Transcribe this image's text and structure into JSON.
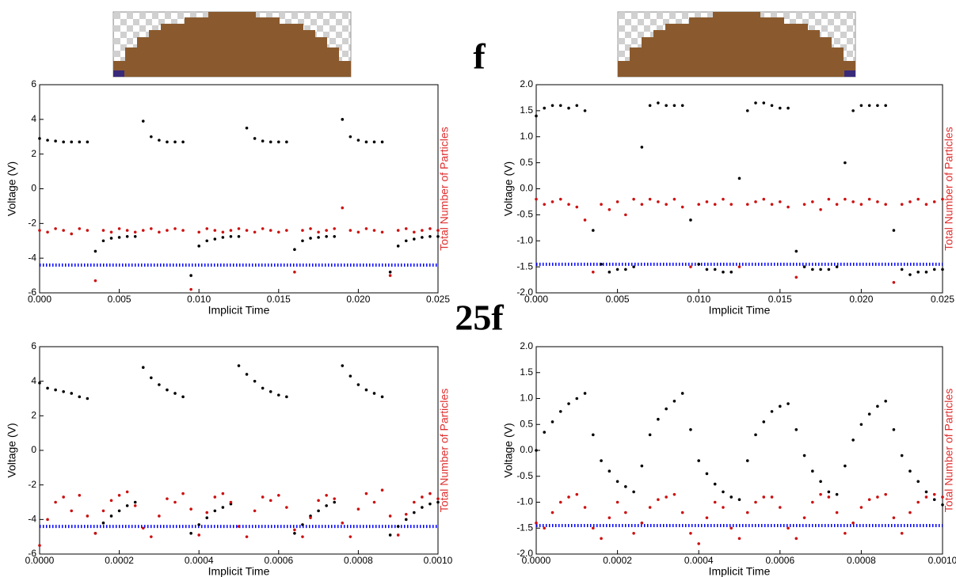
{
  "frequency_labels": [
    "f",
    "25f"
  ],
  "chart_data": [
    {
      "type": "scatter",
      "xlabel": "Implicit Time",
      "ylabel": "Voltage (V)",
      "y2label": "Total Number of Particles",
      "x": [
        0,
        0.0005,
        0.001,
        0.0015,
        0.002,
        0.0025,
        0.003,
        0.0035,
        0.004,
        0.0045,
        0.005,
        0.0055,
        0.006,
        0.0065,
        0.007,
        0.0075,
        0.008,
        0.0085,
        0.009,
        0.0095,
        0.01,
        0.0105,
        0.011,
        0.0115,
        0.012,
        0.0125,
        0.013,
        0.0135,
        0.014,
        0.0145,
        0.015,
        0.0155,
        0.016,
        0.0165,
        0.017,
        0.0175,
        0.018,
        0.0185,
        0.019,
        0.0195,
        0.02,
        0.0205,
        0.021,
        0.0215,
        0.022,
        0.0225,
        0.023,
        0.0235,
        0.024,
        0.0245,
        0.025
      ],
      "series": [
        {
          "color": "#000000",
          "values": [
            2.9,
            2.8,
            2.75,
            2.7,
            2.7,
            2.7,
            2.7,
            -3.6,
            -3.0,
            -2.85,
            -2.8,
            -2.75,
            -2.75,
            3.9,
            3.0,
            2.8,
            2.7,
            2.7,
            2.7,
            -5.0,
            -3.3,
            -3.0,
            -2.9,
            -2.8,
            -2.75,
            -2.75,
            3.5,
            2.9,
            2.75,
            2.7,
            2.7,
            2.7,
            -3.5,
            -3.0,
            -2.85,
            -2.8,
            -2.75,
            -2.75,
            4.0,
            3.0,
            2.8,
            2.7,
            2.7,
            2.7,
            -4.8,
            -3.3,
            -3.0,
            -2.9,
            -2.8,
            -2.75,
            -2.75
          ]
        },
        {
          "color": "#cc1111",
          "values": [
            -2.4,
            -2.5,
            -2.3,
            -2.4,
            -2.6,
            -2.3,
            -2.4,
            -5.3,
            -2.4,
            -2.5,
            -2.3,
            -2.4,
            -2.5,
            -2.4,
            -2.3,
            -2.5,
            -2.4,
            -2.3,
            -2.4,
            -5.8,
            -2.5,
            -2.3,
            -2.4,
            -2.5,
            -2.4,
            -2.3,
            -2.4,
            -2.5,
            -2.3,
            -2.4,
            -2.5,
            -2.4,
            -4.8,
            -2.4,
            -2.3,
            -2.5,
            -2.4,
            -2.3,
            -1.1,
            -2.4,
            -2.5,
            -2.3,
            -2.4,
            -2.5,
            -5.0,
            -2.4,
            -2.3,
            -2.5,
            -2.4,
            -2.3,
            -2.4
          ]
        }
      ],
      "hline": {
        "value": -4.4,
        "color": "#0000ff"
      },
      "xlim": [
        0,
        0.025
      ],
      "ylim": [
        -6,
        6
      ],
      "xticks": [
        {
          "value": 0,
          "label": "0.000"
        },
        {
          "value": 0.005,
          "label": "0.005"
        },
        {
          "value": 0.01,
          "label": "0.010"
        },
        {
          "value": 0.015,
          "label": "0.015"
        },
        {
          "value": 0.02,
          "label": "0.020"
        },
        {
          "value": 0.025,
          "label": "0.025"
        }
      ],
      "yticks": [
        -6,
        -4,
        -2,
        0,
        2,
        4,
        6
      ]
    },
    {
      "type": "scatter",
      "xlabel": "Implicit Time",
      "ylabel": "Voltage (V)",
      "y2label": "Total Number of Particles",
      "x": [
        0,
        0.0005,
        0.001,
        0.0015,
        0.002,
        0.0025,
        0.003,
        0.0035,
        0.004,
        0.0045,
        0.005,
        0.0055,
        0.006,
        0.0065,
        0.007,
        0.0075,
        0.008,
        0.0085,
        0.009,
        0.0095,
        0.01,
        0.0105,
        0.011,
        0.0115,
        0.012,
        0.0125,
        0.013,
        0.0135,
        0.014,
        0.0145,
        0.015,
        0.0155,
        0.016,
        0.0165,
        0.017,
        0.0175,
        0.018,
        0.0185,
        0.019,
        0.0195,
        0.02,
        0.0205,
        0.021,
        0.0215,
        0.022,
        0.0225,
        0.023,
        0.0235,
        0.024,
        0.0245,
        0.025
      ],
      "series": [
        {
          "color": "#000000",
          "values": [
            1.4,
            1.55,
            1.6,
            1.6,
            1.55,
            1.6,
            1.5,
            -0.8,
            -1.45,
            -1.6,
            -1.55,
            -1.55,
            -1.5,
            0.8,
            1.6,
            1.65,
            1.6,
            1.6,
            1.6,
            -0.6,
            -1.45,
            -1.55,
            -1.55,
            -1.6,
            -1.6,
            0.2,
            1.5,
            1.65,
            1.65,
            1.6,
            1.55,
            1.55,
            -1.2,
            -1.5,
            -1.55,
            -1.55,
            -1.55,
            -1.5,
            0.5,
            1.5,
            1.6,
            1.6,
            1.6,
            1.6,
            -0.8,
            -1.55,
            -1.65,
            -1.6,
            -1.6,
            -1.55,
            -1.55
          ]
        },
        {
          "color": "#cc1111",
          "values": [
            -0.2,
            -0.3,
            -0.25,
            -0.2,
            -0.3,
            -0.35,
            -0.6,
            -1.6,
            -0.3,
            -0.4,
            -0.25,
            -0.5,
            -0.2,
            -0.3,
            -0.2,
            -0.25,
            -0.3,
            -0.2,
            -0.35,
            -1.5,
            -0.3,
            -0.25,
            -0.3,
            -0.2,
            -0.3,
            -1.5,
            -0.3,
            -0.25,
            -0.2,
            -0.3,
            -0.25,
            -0.35,
            -1.7,
            -0.3,
            -0.25,
            -0.4,
            -0.2,
            -0.3,
            -0.2,
            -0.25,
            -0.3,
            -0.2,
            -0.25,
            -0.3,
            -1.8,
            -0.3,
            -0.25,
            -0.2,
            -0.3,
            -0.25,
            -0.2
          ]
        }
      ],
      "hline": {
        "value": -1.45,
        "color": "#0000ff"
      },
      "xlim": [
        0,
        0.025
      ],
      "ylim": [
        -2,
        2
      ],
      "xticks": [
        {
          "value": 0,
          "label": "0.000"
        },
        {
          "value": 0.005,
          "label": "0.005"
        },
        {
          "value": 0.01,
          "label": "0.010"
        },
        {
          "value": 0.015,
          "label": "0.015"
        },
        {
          "value": 0.02,
          "label": "0.020"
        },
        {
          "value": 0.025,
          "label": "0.025"
        }
      ],
      "yticks": [
        {
          "value": -2,
          "label": "-2.0"
        },
        -1.5,
        {
          "value": -1,
          "label": "-1.0"
        },
        -0.5,
        {
          "value": 0,
          "label": "0.0"
        },
        0.5,
        {
          "value": 1,
          "label": "1.0"
        },
        1.5,
        {
          "value": 2,
          "label": "2.0"
        }
      ]
    },
    {
      "type": "scatter",
      "xlabel": "Implicit Time",
      "ylabel": "Voltage (V)",
      "y2label": "Total Number of Particles",
      "x": [
        0,
        2e-05,
        4e-05,
        6e-05,
        8e-05,
        0.0001,
        0.00012,
        0.00014,
        0.00016,
        0.00018,
        0.0002,
        0.00022,
        0.00024,
        0.00026,
        0.00028,
        0.0003,
        0.00032,
        0.00034,
        0.00036,
        0.00038,
        0.0004,
        0.00042,
        0.00044,
        0.00046,
        0.00048,
        0.0005,
        0.00052,
        0.00054,
        0.00056,
        0.00058,
        0.0006,
        0.00062,
        0.00064,
        0.00066,
        0.00068,
        0.0007,
        0.00072,
        0.00074,
        0.00076,
        0.00078,
        0.0008,
        0.00082,
        0.00084,
        0.00086,
        0.00088,
        0.0009,
        0.00092,
        0.00094,
        0.00096,
        0.00098,
        0.001
      ],
      "series": [
        {
          "color": "#000000",
          "values": [
            3.9,
            3.6,
            3.5,
            3.4,
            3.3,
            3.1,
            3.0,
            -4.8,
            -4.2,
            -3.8,
            -3.5,
            -3.2,
            -3.0,
            4.8,
            4.2,
            3.8,
            3.5,
            3.3,
            3.1,
            -4.8,
            -4.3,
            -3.9,
            -3.5,
            -3.3,
            -3.1,
            4.9,
            4.4,
            4.0,
            3.6,
            3.4,
            3.2,
            3.1,
            -4.8,
            -4.3,
            -3.8,
            -3.5,
            -3.2,
            -3.0,
            4.9,
            4.3,
            3.8,
            3.5,
            3.3,
            3.1,
            -4.9,
            -4.4,
            -4.0,
            -3.6,
            -3.3,
            -3.1,
            -3.0
          ]
        },
        {
          "color": "#cc1111",
          "values": [
            -5.5,
            -4.0,
            -3.0,
            -2.7,
            -3.5,
            -2.6,
            -3.8,
            -4.8,
            -3.5,
            -2.9,
            -2.6,
            -2.4,
            -3.2,
            -4.5,
            -5.0,
            -3.8,
            -2.8,
            -3.0,
            -2.5,
            -3.4,
            -4.9,
            -3.6,
            -2.7,
            -2.5,
            -3.0,
            -4.4,
            -5.0,
            -3.5,
            -2.7,
            -2.9,
            -2.6,
            -3.3,
            -4.6,
            -5.0,
            -3.9,
            -2.9,
            -2.6,
            -2.8,
            -4.2,
            -5.0,
            -3.4,
            -2.5,
            -3.0,
            -2.3,
            -3.8,
            -4.9,
            -3.7,
            -3.0,
            -2.7,
            -2.5,
            -2.8
          ]
        }
      ],
      "hline": {
        "value": -4.4,
        "color": "#0000ff"
      },
      "xlim": [
        0,
        0.001
      ],
      "ylim": [
        -6,
        6
      ],
      "xticks": [
        {
          "value": 0,
          "label": "0.0000"
        },
        {
          "value": 0.0002,
          "label": "0.0002"
        },
        {
          "value": 0.0004,
          "label": "0.0004"
        },
        {
          "value": 0.0006,
          "label": "0.0006"
        },
        {
          "value": 0.0008,
          "label": "0.0008"
        },
        {
          "value": 0.001,
          "label": "0.0010"
        }
      ],
      "yticks": [
        -6,
        -4,
        -2,
        0,
        2,
        4,
        6
      ]
    },
    {
      "type": "scatter",
      "xlabel": "Implicit Time",
      "ylabel": "Voltage (V)",
      "y2label": "Total Number of Particles",
      "x": [
        0,
        2e-05,
        4e-05,
        6e-05,
        8e-05,
        0.0001,
        0.00012,
        0.00014,
        0.00016,
        0.00018,
        0.0002,
        0.00022,
        0.00024,
        0.00026,
        0.00028,
        0.0003,
        0.00032,
        0.00034,
        0.00036,
        0.00038,
        0.0004,
        0.00042,
        0.00044,
        0.00046,
        0.00048,
        0.0005,
        0.00052,
        0.00054,
        0.00056,
        0.00058,
        0.0006,
        0.00062,
        0.00064,
        0.00066,
        0.00068,
        0.0007,
        0.00072,
        0.00074,
        0.00076,
        0.00078,
        0.0008,
        0.00082,
        0.00084,
        0.00086,
        0.00088,
        0.0009,
        0.00092,
        0.00094,
        0.00096,
        0.00098,
        0.001
      ],
      "series": [
        {
          "color": "#000000",
          "values": [
            0.0,
            0.35,
            0.55,
            0.75,
            0.9,
            1.0,
            1.1,
            0.3,
            -0.2,
            -0.4,
            -0.6,
            -0.7,
            -0.8,
            -0.3,
            0.3,
            0.6,
            0.8,
            0.95,
            1.1,
            0.4,
            -0.2,
            -0.45,
            -0.65,
            -0.8,
            -0.9,
            -0.95,
            -0.2,
            0.3,
            0.55,
            0.75,
            0.85,
            0.9,
            0.4,
            -0.1,
            -0.4,
            -0.6,
            -0.8,
            -0.85,
            -0.3,
            0.2,
            0.5,
            0.7,
            0.85,
            0.95,
            0.4,
            -0.1,
            -0.4,
            -0.6,
            -0.8,
            -0.95,
            -1.05
          ]
        },
        {
          "color": "#cc1111",
          "values": [
            -1.4,
            -1.5,
            -1.2,
            -1.0,
            -0.9,
            -0.85,
            -1.1,
            -1.5,
            -1.7,
            -1.3,
            -1.0,
            -1.2,
            -1.6,
            -1.4,
            -1.1,
            -0.95,
            -0.9,
            -0.85,
            -1.2,
            -1.6,
            -1.8,
            -1.3,
            -1.0,
            -1.1,
            -1.5,
            -1.7,
            -1.2,
            -1.0,
            -0.9,
            -0.9,
            -1.1,
            -1.5,
            -1.7,
            -1.3,
            -1.0,
            -0.85,
            -0.9,
            -1.2,
            -1.6,
            -1.4,
            -1.1,
            -0.95,
            -0.9,
            -0.85,
            -1.3,
            -1.6,
            -1.2,
            -1.0,
            -0.9,
            -0.85,
            -0.9
          ]
        }
      ],
      "hline": {
        "value": -1.45,
        "color": "#0000ff"
      },
      "xlim": [
        0,
        0.001
      ],
      "ylim": [
        -2,
        2
      ],
      "xticks": [
        {
          "value": 0,
          "label": "0.0000"
        },
        {
          "value": 0.0002,
          "label": "0.0002"
        },
        {
          "value": 0.0004,
          "label": "0.0004"
        },
        {
          "value": 0.0006,
          "label": "0.0006"
        },
        {
          "value": 0.0008,
          "label": "0.0008"
        },
        {
          "value": 0.001,
          "label": "0.0010"
        }
      ],
      "yticks": [
        {
          "value": -2,
          "label": "-2.0"
        },
        -1.5,
        {
          "value": -1,
          "label": "-1.0"
        },
        -0.5,
        {
          "value": 0,
          "label": "0.0"
        },
        0.5,
        {
          "value": 1,
          "label": "1.0"
        },
        1.5,
        {
          "value": 2,
          "label": "2.0"
        }
      ]
    }
  ]
}
